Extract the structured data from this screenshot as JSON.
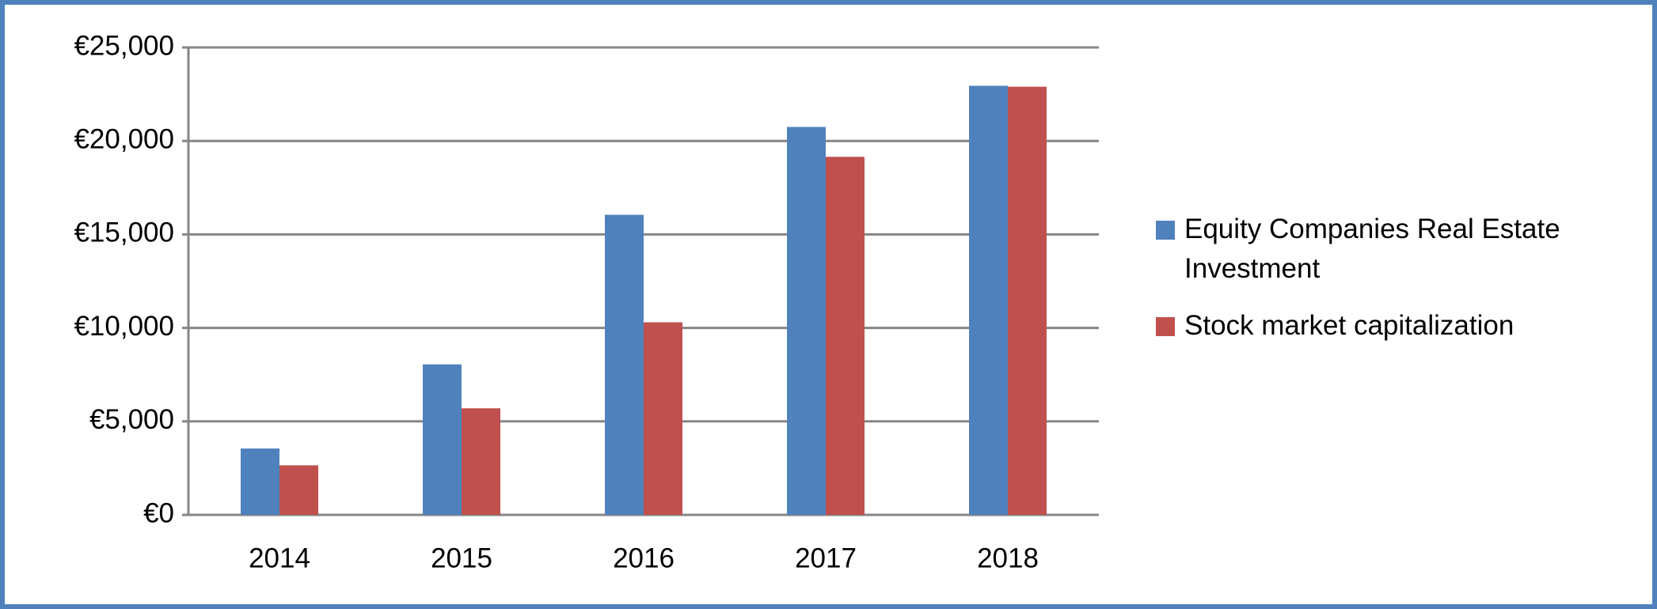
{
  "chart_data": {
    "type": "bar",
    "categories": [
      "2014",
      "2015",
      "2016",
      "2017",
      "2018"
    ],
    "series": [
      {
        "name": "Equity Companies Real Estate Investment",
        "color": "#4f81bd",
        "values": [
          3550,
          8050,
          16050,
          20750,
          22950
        ]
      },
      {
        "name": "Stock market capitalization",
        "color": "#c0504d",
        "values": [
          2650,
          5700,
          10300,
          19150,
          22900
        ]
      }
    ],
    "ylim": [
      0,
      25000
    ],
    "yticks": [
      {
        "value": 0,
        "label": "€0"
      },
      {
        "value": 5000,
        "label": "€5,000"
      },
      {
        "value": 10000,
        "label": "€10,000"
      },
      {
        "value": 15000,
        "label": "€15,000"
      },
      {
        "value": 20000,
        "label": "€20,000"
      },
      {
        "value": 25000,
        "label": "€25,000"
      }
    ],
    "grid": true,
    "legend": "right"
  }
}
